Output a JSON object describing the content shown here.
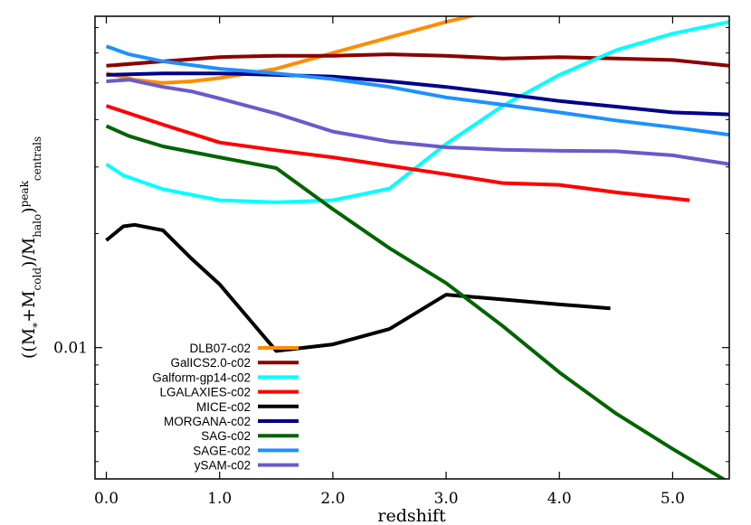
{
  "chart_data": {
    "type": "line",
    "xlabel": "redshift",
    "ylabel": "((M*+Mcold)/Mhalo)^peak centrals",
    "ylabel_parts": {
      "main": "((M",
      "sub1": "*",
      "plus": "+M",
      "sub2": "cold",
      "mid": ")/M",
      "sub3": "halo",
      "close": ")",
      "sup": "peak",
      "sub4": "centrals"
    },
    "xlim": [
      -0.1,
      5.5
    ],
    "ylim": [
      0.0045,
      0.075
    ],
    "yscale": "log",
    "x_ticks": [
      0.0,
      1.0,
      2.0,
      3.0,
      4.0,
      5.0
    ],
    "x_tick_labels": [
      "0.0",
      "1.0",
      "2.0",
      "3.0",
      "4.0",
      "5.0"
    ],
    "y_ticks": [
      0.01
    ],
    "y_tick_labels": [
      "0.01"
    ],
    "grid": false,
    "legend_position": "bottom-left",
    "series": [
      {
        "name": "DLB07-c02",
        "color": "#ff8c00",
        "x": [
          0,
          0.25,
          0.5,
          0.75,
          1.0,
          1.5,
          2.0,
          2.5,
          3.0,
          3.25
        ],
        "y": [
          0.053,
          0.051,
          0.05,
          0.0505,
          0.0515,
          0.0545,
          0.06,
          0.066,
          0.0725,
          0.0755
        ]
      },
      {
        "name": "GalICS2.0-c02",
        "color": "#8b0000",
        "x": [
          0,
          0.5,
          1.0,
          1.5,
          2.0,
          2.5,
          3.0,
          3.5,
          4.0,
          4.5,
          5.0,
          5.5
        ],
        "y": [
          0.0555,
          0.057,
          0.0585,
          0.059,
          0.059,
          0.0595,
          0.059,
          0.058,
          0.0585,
          0.058,
          0.0575,
          0.0555
        ]
      },
      {
        "name": "Galform-gp14-c02",
        "color": "#00ffff",
        "x": [
          0,
          0.15,
          0.5,
          1.0,
          1.5,
          2.0,
          2.5,
          3.0,
          3.5,
          4.0,
          4.5,
          5.0,
          5.5
        ],
        "y": [
          0.0305,
          0.0285,
          0.0262,
          0.0245,
          0.0242,
          0.0245,
          0.0263,
          0.0345,
          0.0435,
          0.0525,
          0.061,
          0.0675,
          0.0725
        ]
      },
      {
        "name": "LGALAXIES-c02",
        "color": "#ff0000",
        "x": [
          0,
          0.5,
          1.0,
          1.5,
          2.0,
          2.5,
          3.0,
          3.5,
          4.0,
          4.5,
          5.15
        ],
        "y": [
          0.0435,
          0.0388,
          0.0348,
          0.0332,
          0.0318,
          0.0302,
          0.0287,
          0.0272,
          0.0269,
          0.0257,
          0.0245
        ]
      },
      {
        "name": "MICE-c02",
        "color": "#000000",
        "x": [
          0,
          0.15,
          0.25,
          0.5,
          0.75,
          1.0,
          1.5,
          2.0,
          2.5,
          3.0,
          3.5,
          4.0,
          4.45
        ],
        "y": [
          0.0192,
          0.0209,
          0.0211,
          0.0204,
          0.0172,
          0.0147,
          0.0098,
          0.0102,
          0.0112,
          0.0138,
          0.0134,
          0.013,
          0.0127
        ]
      },
      {
        "name": "MORGANA-c02",
        "color": "#00008b",
        "x": [
          0,
          0.5,
          1.0,
          1.5,
          2.0,
          2.5,
          3.0,
          3.5,
          4.0,
          4.5,
          5.0,
          5.5
        ],
        "y": [
          0.0525,
          0.053,
          0.053,
          0.0525,
          0.052,
          0.0505,
          0.0488,
          0.0468,
          0.0448,
          0.0433,
          0.0418,
          0.0413
        ]
      },
      {
        "name": "SAG-c02",
        "color": "#006400",
        "x": [
          0,
          0.2,
          0.5,
          1.0,
          1.5,
          2.0,
          2.5,
          3.0,
          3.5,
          4.0,
          4.5,
          5.0,
          5.5
        ],
        "y": [
          0.0385,
          0.0362,
          0.034,
          0.0318,
          0.0298,
          0.0232,
          0.0183,
          0.0148,
          0.0114,
          0.0086,
          0.0067,
          0.0054,
          0.0044
        ]
      },
      {
        "name": "SAGE-c02",
        "color": "#1e90ff",
        "x": [
          0,
          0.2,
          0.5,
          1.0,
          1.5,
          2.0,
          2.5,
          3.0,
          3.5,
          4.0,
          4.5,
          5.0,
          5.5
        ],
        "y": [
          0.0625,
          0.0595,
          0.057,
          0.0545,
          0.053,
          0.0512,
          0.0488,
          0.0458,
          0.0438,
          0.0418,
          0.0398,
          0.0382,
          0.0365
        ]
      },
      {
        "name": "ySAM-c02",
        "color": "#6a5acd",
        "x": [
          0,
          0.2,
          0.5,
          0.75,
          1.0,
          1.5,
          2.0,
          2.5,
          3.0,
          3.5,
          4.0,
          4.5,
          5.0,
          5.5
        ],
        "y": [
          0.0505,
          0.051,
          0.0488,
          0.0475,
          0.0455,
          0.0415,
          0.0372,
          0.035,
          0.0338,
          0.0333,
          0.0331,
          0.033,
          0.0322,
          0.0305
        ]
      }
    ]
  }
}
